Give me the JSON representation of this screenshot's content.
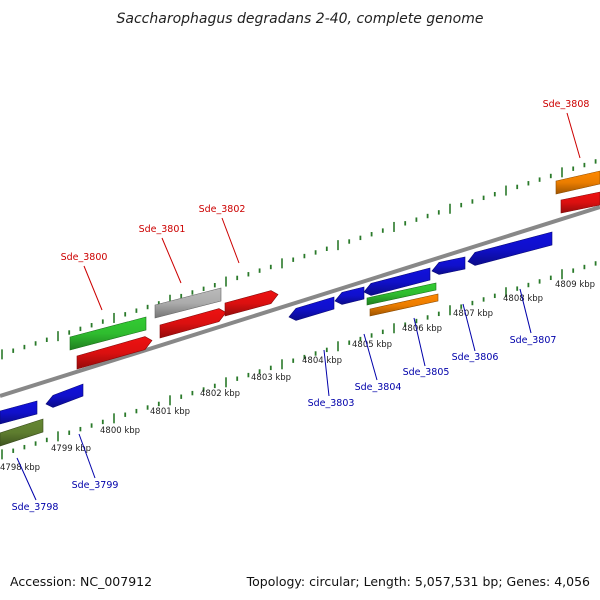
{
  "title": "Saccharophagus degradans 2-40, complete genome",
  "footer": {
    "accession": "Accession: NC_007912",
    "summary": "Topology: circular; Length: 5,057,531 bp; Genes: 4,056"
  },
  "colors": {
    "forward_label": "#cc0000",
    "reverse_label": "#0000aa",
    "backbone": "#888888",
    "tick": "#2a7a2a",
    "red": "#ee1111",
    "blue": "#1111dd",
    "green": "#33cc33",
    "grey": "#bbbbbb",
    "orange": "#ff8800",
    "olive": "#668833"
  },
  "tick_labels": [
    "4798 kbp",
    "4799 kbp",
    "4800 kbp",
    "4801 kbp",
    "4802 kbp",
    "4803 kbp",
    "4804 kbp",
    "4805 kbp",
    "4806 kbp",
    "4807 kbp",
    "4808 kbp",
    "4809 kbp"
  ],
  "gene_labels": [
    {
      "text": "Sde_3798",
      "strand": "reverse"
    },
    {
      "text": "Sde_3799",
      "strand": "reverse"
    },
    {
      "text": "Sde_3800",
      "strand": "forward"
    },
    {
      "text": "Sde_3801",
      "strand": "forward"
    },
    {
      "text": "Sde_3802",
      "strand": "forward"
    },
    {
      "text": "Sde_3803",
      "strand": "reverse"
    },
    {
      "text": "Sde_3804",
      "strand": "reverse"
    },
    {
      "text": "Sde_3805",
      "strand": "reverse"
    },
    {
      "text": "Sde_3806",
      "strand": "reverse"
    },
    {
      "text": "Sde_3807",
      "strand": "reverse"
    },
    {
      "text": "Sde_3808",
      "strand": "forward"
    }
  ]
}
